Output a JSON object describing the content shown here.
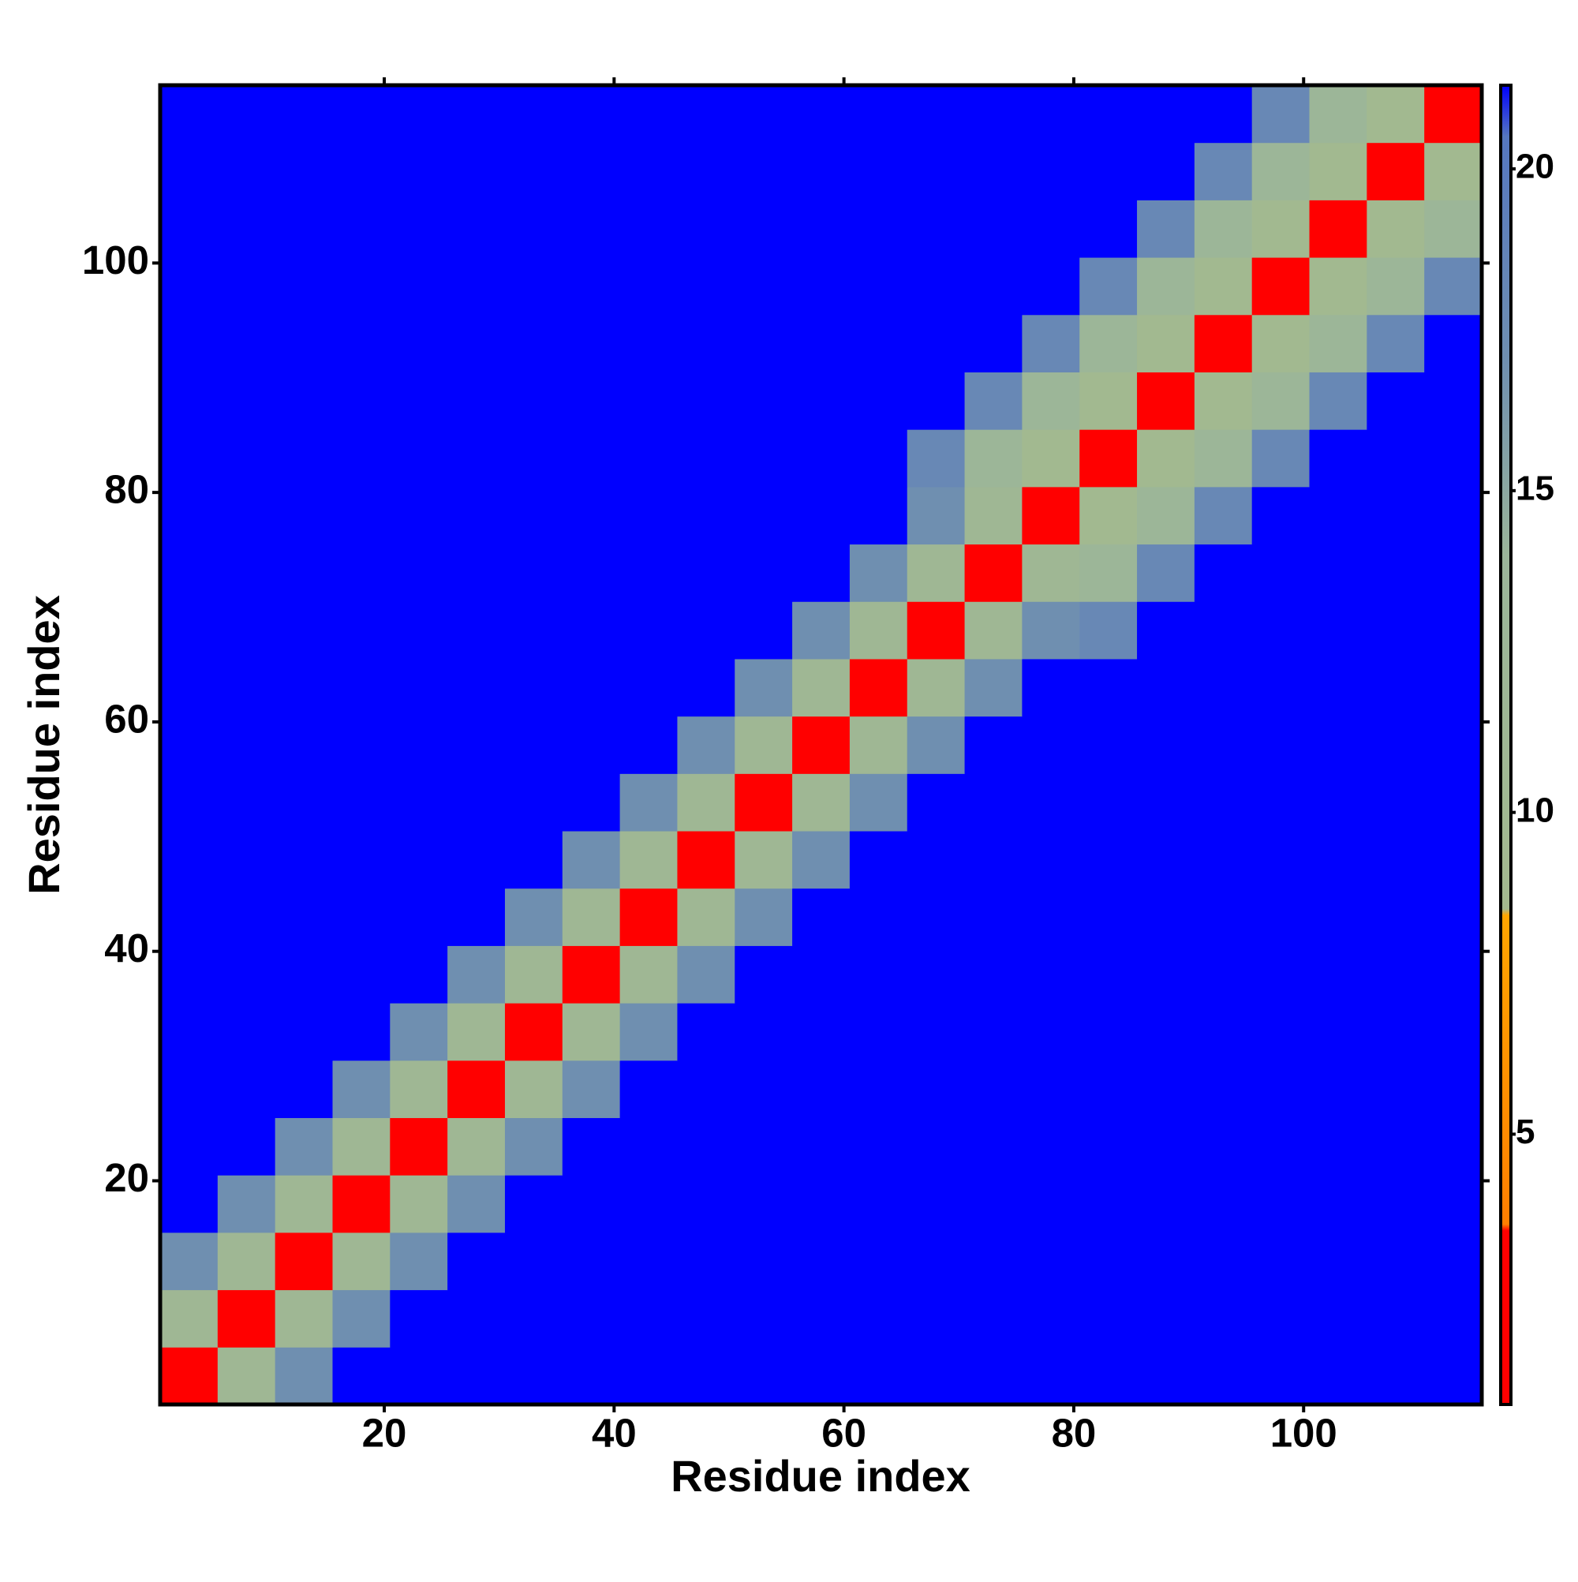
{
  "chart_data": {
    "type": "heatmap",
    "xlabel": "Residue index",
    "ylabel": "Residue index",
    "x": [
      3,
      8,
      13,
      18,
      23,
      28,
      33,
      38,
      43,
      48,
      53,
      58,
      63,
      68,
      73,
      78,
      83,
      88,
      93,
      98,
      103,
      108,
      113
    ],
    "y": [
      3,
      8,
      13,
      18,
      23,
      28,
      33,
      38,
      43,
      48,
      53,
      58,
      63,
      68,
      73,
      78,
      83,
      88,
      93,
      98,
      103,
      108,
      113
    ],
    "values": [
      [
        2,
        11,
        17,
        22,
        22,
        22,
        22,
        22,
        22,
        22,
        22,
        22,
        22,
        22,
        22,
        22,
        22,
        22,
        22,
        22,
        22,
        22,
        22
      ],
      [
        11,
        2,
        11,
        17,
        22,
        22,
        22,
        22,
        22,
        22,
        22,
        22,
        22,
        22,
        22,
        22,
        22,
        22,
        22,
        22,
        22,
        22,
        22
      ],
      [
        17,
        11,
        2,
        11,
        17,
        22,
        22,
        22,
        22,
        22,
        22,
        22,
        22,
        22,
        22,
        22,
        22,
        22,
        22,
        22,
        22,
        22,
        22
      ],
      [
        22,
        17,
        11,
        2,
        11,
        17,
        22,
        22,
        22,
        22,
        22,
        22,
        22,
        22,
        22,
        22,
        22,
        22,
        22,
        22,
        22,
        22,
        22
      ],
      [
        22,
        22,
        17,
        11,
        2,
        11,
        17,
        22,
        22,
        22,
        22,
        22,
        22,
        22,
        22,
        22,
        22,
        22,
        22,
        22,
        22,
        22,
        22
      ],
      [
        22,
        22,
        22,
        17,
        11,
        2,
        11,
        17,
        22,
        22,
        22,
        22,
        22,
        22,
        22,
        22,
        22,
        22,
        22,
        22,
        22,
        22,
        22
      ],
      [
        22,
        22,
        22,
        22,
        17,
        11,
        2,
        11,
        17,
        22,
        22,
        22,
        22,
        22,
        22,
        22,
        22,
        22,
        22,
        22,
        22,
        22,
        22
      ],
      [
        22,
        22,
        22,
        22,
        22,
        17,
        11,
        2,
        11,
        17,
        22,
        22,
        22,
        22,
        22,
        22,
        22,
        22,
        22,
        22,
        22,
        22,
        22
      ],
      [
        22,
        22,
        22,
        22,
        22,
        22,
        17,
        11,
        2,
        11,
        17,
        22,
        22,
        22,
        22,
        22,
        22,
        22,
        22,
        22,
        22,
        22,
        22
      ],
      [
        22,
        22,
        22,
        22,
        22,
        22,
        22,
        17,
        11,
        2,
        11,
        17,
        22,
        22,
        22,
        22,
        22,
        22,
        22,
        22,
        22,
        22,
        22
      ],
      [
        22,
        22,
        22,
        22,
        22,
        22,
        22,
        22,
        17,
        11,
        2,
        11,
        17,
        22,
        22,
        22,
        22,
        22,
        22,
        22,
        22,
        22,
        22
      ],
      [
        22,
        22,
        22,
        22,
        22,
        22,
        22,
        22,
        22,
        17,
        11,
        2,
        11,
        17,
        22,
        22,
        22,
        22,
        22,
        22,
        22,
        22,
        22
      ],
      [
        22,
        22,
        22,
        22,
        22,
        22,
        22,
        22,
        22,
        22,
        17,
        11,
        2,
        11,
        17,
        22,
        22,
        22,
        22,
        22,
        22,
        22,
        22
      ],
      [
        22,
        22,
        22,
        22,
        22,
        22,
        22,
        22,
        22,
        22,
        22,
        17,
        11,
        2,
        11,
        17,
        18,
        22,
        22,
        22,
        22,
        22,
        22
      ],
      [
        22,
        22,
        22,
        22,
        22,
        22,
        22,
        22,
        22,
        22,
        22,
        22,
        17,
        11,
        2,
        11,
        13,
        18,
        22,
        22,
        22,
        22,
        22
      ],
      [
        22,
        22,
        22,
        22,
        22,
        22,
        22,
        22,
        22,
        22,
        22,
        22,
        22,
        17,
        11,
        2,
        9,
        13,
        18,
        22,
        22,
        22,
        22
      ],
      [
        22,
        22,
        22,
        22,
        22,
        22,
        22,
        22,
        22,
        22,
        22,
        22,
        22,
        18,
        13,
        9,
        2,
        9,
        13,
        18,
        22,
        22,
        22
      ],
      [
        22,
        22,
        22,
        22,
        22,
        22,
        22,
        22,
        22,
        22,
        22,
        22,
        22,
        22,
        18,
        13,
        9,
        2,
        9,
        13,
        18,
        22,
        22
      ],
      [
        22,
        22,
        22,
        22,
        22,
        22,
        22,
        22,
        22,
        22,
        22,
        22,
        22,
        22,
        22,
        18,
        13,
        9,
        2,
        9,
        13,
        18,
        22
      ],
      [
        22,
        22,
        22,
        22,
        22,
        22,
        22,
        22,
        22,
        22,
        22,
        22,
        22,
        22,
        22,
        22,
        18,
        13,
        9,
        2,
        9,
        13,
        18
      ],
      [
        22,
        22,
        22,
        22,
        22,
        22,
        22,
        22,
        22,
        22,
        22,
        22,
        22,
        22,
        22,
        22,
        22,
        18,
        13,
        9,
        2,
        9,
        13
      ],
      [
        22,
        22,
        22,
        22,
        22,
        22,
        22,
        22,
        22,
        22,
        22,
        22,
        22,
        22,
        22,
        22,
        22,
        22,
        18,
        13,
        9,
        2,
        9
      ],
      [
        22,
        22,
        22,
        22,
        22,
        22,
        22,
        22,
        22,
        22,
        22,
        22,
        22,
        22,
        22,
        22,
        22,
        22,
        22,
        18,
        13,
        9,
        2
      ]
    ],
    "xlim": [
      0.5,
      115.5
    ],
    "ylim": [
      0.5,
      115.5
    ],
    "xticks": [
      20,
      40,
      60,
      80,
      100
    ],
    "yticks": [
      20,
      40,
      60,
      80,
      100
    ],
    "zlim": [
      0.8,
      21.3
    ],
    "zticks": [
      5,
      10,
      15,
      20
    ],
    "colorscale": [
      [
        0.8,
        "#ff0000"
      ],
      [
        3.5,
        "#ff0000"
      ],
      [
        3.6,
        "#ff7f00"
      ],
      [
        8.4,
        "#ffa500"
      ],
      [
        8.5,
        "#a3b98f"
      ],
      [
        14,
        "#9bb59a"
      ],
      [
        17,
        "#6f8fb0"
      ],
      [
        20.5,
        "#5577c0"
      ],
      [
        21.3,
        "#0000ff"
      ]
    ]
  }
}
